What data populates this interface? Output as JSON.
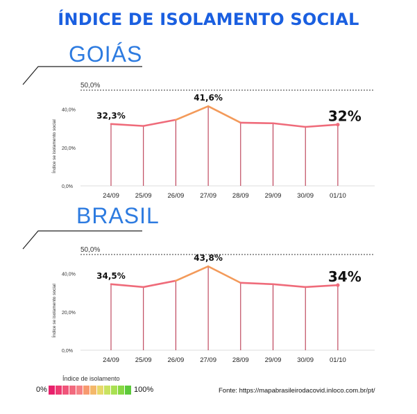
{
  "title": "ÍNDICE DE ISOLAMENTO SOCIAL",
  "legend": {
    "title": "Índice de isolamento",
    "min_label": "0%",
    "max_label": "100%",
    "colors": [
      "#e8216c",
      "#ee3b72",
      "#f0557a",
      "#f26a7e",
      "#f58286",
      "#f79a70",
      "#f4b86a",
      "#e7d86a",
      "#c9e260",
      "#a9e052",
      "#88d844",
      "#5cc93a"
    ]
  },
  "source": "Fonte: https://mapabrasileirodacovid.inloco.com.br/pt/",
  "chart_data": [
    {
      "type": "line",
      "region_title": "GOIÁS",
      "ylabel": "Índice se isolamento social",
      "reference_label": "50,0%",
      "ylim": [
        0,
        50
      ],
      "y_ticks": [
        "40,0%",
        "20,0%",
        "0,0%"
      ],
      "y_tick_values": [
        40,
        20,
        0
      ],
      "categories": [
        "24/09",
        "25/09",
        "26/09",
        "27/09",
        "28/09",
        "29/09",
        "30/09",
        "01/10"
      ],
      "values": [
        32.3,
        31.3,
        34.5,
        41.6,
        33.0,
        32.7,
        30.8,
        32.0
      ],
      "data_labels": {
        "first": "32,3%",
        "peak": "41,6%",
        "last": "32%"
      },
      "colors": {
        "line": "#ef6b7a",
        "peak": "#f39a5a",
        "stem": "#b3243f"
      },
      "grid": false
    },
    {
      "type": "line",
      "region_title": "BRASIL",
      "ylabel": "Índice se isolamento social",
      "reference_label": "50,0%",
      "ylim": [
        0,
        50
      ],
      "y_ticks": [
        "40,0%",
        "20,0%",
        "0,0%"
      ],
      "y_tick_values": [
        40,
        20,
        0
      ],
      "categories": [
        "24/09",
        "25/09",
        "26/09",
        "27/09",
        "28/09",
        "29/09",
        "30/09",
        "01/10"
      ],
      "values": [
        34.5,
        33.0,
        36.3,
        43.8,
        35.2,
        34.5,
        33.0,
        34.0
      ],
      "data_labels": {
        "first": "34,5%",
        "peak": "43,8%",
        "last": "34%"
      },
      "colors": {
        "line": "#ef6b7a",
        "peak": "#f39a5a",
        "stem": "#b3243f"
      },
      "grid": false
    }
  ]
}
